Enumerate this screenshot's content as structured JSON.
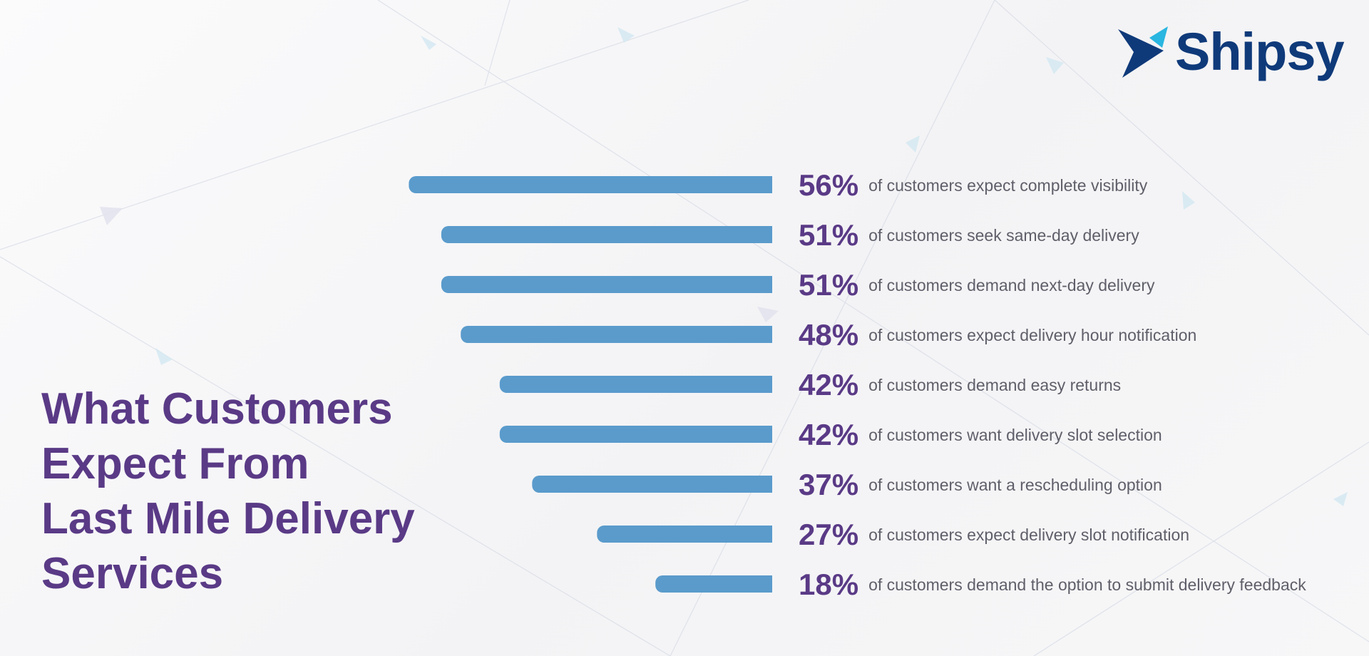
{
  "brand": {
    "name": "Shipsy",
    "logo_icon": "bird-arrow-icon",
    "colors": {
      "primary": "#0f3a7a",
      "accent": "#29b6e0"
    }
  },
  "headline": {
    "lines": [
      "What Customers",
      "Expect From",
      "Last Mile Delivery",
      "Services"
    ],
    "color": "#5a3a86"
  },
  "chart_data": {
    "type": "bar",
    "orientation": "horizontal",
    "bar_direction": "right-aligned, extending left",
    "bar_color": "#5a9bcc",
    "label_color": "#5a3a86",
    "grid": false,
    "categories": [
      "of customers expect complete visibility",
      "of customers seek same-day delivery",
      "of customers demand next-day delivery",
      "of customers expect delivery hour notification",
      "of customers demand easy returns",
      "of customers want delivery slot selection",
      "of customers want a rescheduling option",
      "of customers expect delivery slot notification",
      "of customers demand the option to submit delivery feedback"
    ],
    "values": [
      56,
      51,
      51,
      48,
      42,
      42,
      37,
      27,
      18
    ],
    "value_labels": [
      "56%",
      "51%",
      "51%",
      "48%",
      "42%",
      "42%",
      "37%",
      "27%",
      "18%"
    ],
    "unit": "%"
  }
}
